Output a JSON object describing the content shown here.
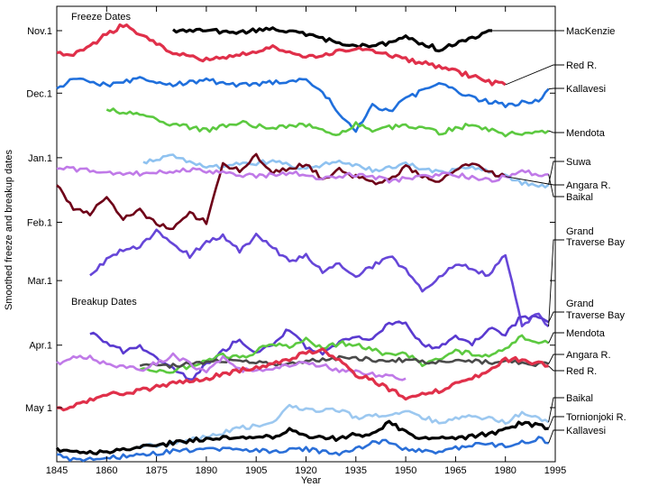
{
  "chart_data": {
    "type": "line",
    "title": "",
    "xlabel": "Year",
    "ylabel": "Smoothed freeze and breakup dates",
    "xlim": [
      1845,
      1995
    ],
    "xticks": [
      "1845",
      "1860",
      "1875",
      "1890",
      "1905",
      "1920",
      "1935",
      "1950",
      "1965",
      "1980",
      "1995"
    ],
    "yticks": [
      {
        "label": "Nov.1",
        "day": 0
      },
      {
        "label": "Dec.1",
        "day": 30
      },
      {
        "label": "Jan.1",
        "day": 61
      },
      {
        "label": "Feb.1",
        "day": 92
      },
      {
        "label": "Mar.1",
        "day": 120
      },
      {
        "label": "Apr.1",
        "day": 151
      },
      {
        "label": "May 1",
        "day": 181
      }
    ],
    "ylim_days_from_nov1": [
      -8,
      207
    ],
    "sections": [
      "Freeze Dates",
      "Breakup Dates"
    ],
    "series": [
      {
        "name": "MacKenzie",
        "group": "freeze",
        "color": "#000000",
        "x": [
          1880,
          1890,
          1900,
          1910,
          1920,
          1930,
          1940,
          1950,
          1960,
          1970,
          1976
        ],
        "y": [
          0,
          0,
          1,
          -1,
          2,
          6,
          8,
          3,
          9,
          4,
          0
        ]
      },
      {
        "name": "Red R.",
        "group": "freeze",
        "color": "#e0304a",
        "x": [
          1845,
          1850,
          1860,
          1865,
          1870,
          1880,
          1890,
          1900,
          1910,
          1920,
          1930,
          1935,
          1940,
          1950,
          1960,
          1970,
          1976,
          1980
        ],
        "y": [
          11,
          12,
          2,
          -3,
          2,
          11,
          14,
          12,
          8,
          13,
          10,
          8,
          10,
          14,
          17,
          22,
          25,
          26
        ]
      },
      {
        "name": "Kallavesi",
        "group": "freeze",
        "color": "#1f6fdc",
        "x": [
          1845,
          1850,
          1860,
          1870,
          1880,
          1890,
          1900,
          1910,
          1920,
          1925,
          1930,
          1935,
          1940,
          1945,
          1950,
          1960,
          1970,
          1980,
          1990,
          1993
        ],
        "y": [
          28,
          23,
          26,
          23,
          26,
          24,
          26,
          25,
          24,
          29,
          40,
          48,
          36,
          39,
          33,
          25,
          32,
          36,
          33,
          28
        ]
      },
      {
        "name": "Mendota",
        "group": "freeze",
        "color": "#5cc940",
        "x": [
          1860,
          1870,
          1880,
          1890,
          1900,
          1910,
          1920,
          1930,
          1935,
          1940,
          1950,
          1960,
          1970,
          1980,
          1990,
          1993
        ],
        "y": [
          38,
          40,
          45,
          48,
          44,
          47,
          45,
          50,
          45,
          48,
          45,
          49,
          45,
          50,
          48,
          48
        ]
      },
      {
        "name": "Suwa",
        "group": "freeze",
        "color": "#8fc2f0",
        "x": [
          1871,
          1880,
          1890,
          1900,
          1910,
          1920,
          1930,
          1940,
          1950,
          1960,
          1970,
          1980,
          1985,
          1990,
          1993
        ],
        "y": [
          63,
          60,
          66,
          64,
          63,
          66,
          63,
          67,
          64,
          68,
          66,
          70,
          73,
          75,
          74
        ]
      },
      {
        "name": "Angara R.",
        "group": "freeze",
        "color": "#6e0018",
        "x": [
          1845,
          1850,
          1855,
          1860,
          1865,
          1870,
          1875,
          1880,
          1885,
          1890,
          1895,
          1900,
          1905,
          1910,
          1920,
          1925,
          1930,
          1935,
          1940,
          1945,
          1950,
          1955,
          1960,
          1965,
          1970,
          1975,
          1980
        ],
        "y": [
          74,
          85,
          88,
          80,
          90,
          86,
          93,
          95,
          88,
          92,
          64,
          67,
          60,
          68,
          64,
          71,
          67,
          70,
          73,
          72,
          65,
          70,
          73,
          67,
          64,
          68,
          70
        ]
      },
      {
        "name": "Baikal",
        "group": "freeze",
        "color": "#c07ae8",
        "x": [
          1845,
          1855,
          1865,
          1875,
          1885,
          1895,
          1905,
          1915,
          1925,
          1935,
          1945,
          1955,
          1965,
          1975,
          1985,
          1993
        ],
        "y": [
          66,
          67,
          69,
          68,
          67,
          68,
          70,
          68,
          71,
          69,
          72,
          70,
          69,
          72,
          68,
          69
        ]
      },
      {
        "name": "Grand Traverse Bay",
        "group": "freeze",
        "color": "#6646d8",
        "x": [
          1855,
          1860,
          1865,
          1870,
          1875,
          1880,
          1885,
          1890,
          1895,
          1900,
          1905,
          1910,
          1915,
          1920,
          1925,
          1930,
          1935,
          1940,
          1945,
          1950,
          1955,
          1960,
          1965,
          1970,
          1975,
          1980,
          1985,
          1990,
          1993
        ],
        "y": [
          117,
          110,
          105,
          104,
          96,
          102,
          108,
          102,
          98,
          106,
          98,
          104,
          111,
          108,
          116,
          112,
          118,
          113,
          108,
          115,
          125,
          118,
          112,
          114,
          118,
          107,
          141,
          136,
          142
        ]
      },
      {
        "name": "Grand Traverse Bay",
        "group": "breakup",
        "color": "#5a3ad0",
        "x": [
          1855,
          1860,
          1865,
          1870,
          1875,
          1880,
          1885,
          1890,
          1895,
          1900,
          1905,
          1910,
          1915,
          1920,
          1925,
          1930,
          1935,
          1940,
          1945,
          1950,
          1955,
          1960,
          1965,
          1970,
          1975,
          1980,
          1985,
          1990,
          1993
        ],
        "y": [
          145,
          150,
          154,
          151,
          158,
          162,
          168,
          160,
          154,
          148,
          155,
          151,
          143,
          152,
          155,
          150,
          147,
          148,
          140,
          141,
          151,
          152,
          147,
          150,
          143,
          146,
          137,
          138,
          140
        ]
      },
      {
        "name": "Mendota",
        "group": "breakup",
        "color": "#5cc940",
        "x": [
          1870,
          1875,
          1880,
          1885,
          1890,
          1895,
          1900,
          1905,
          1910,
          1915,
          1920,
          1925,
          1930,
          1935,
          1940,
          1945,
          1950,
          1955,
          1960,
          1965,
          1970,
          1975,
          1980,
          1985,
          1990,
          1993
        ],
        "y": [
          162,
          164,
          163,
          161,
          158,
          156,
          157,
          154,
          150,
          152,
          148,
          153,
          150,
          151,
          153,
          156,
          155,
          160,
          158,
          154,
          155,
          156,
          152,
          147,
          149,
          150
        ]
      },
      {
        "name": "Angara R.",
        "group": "breakup",
        "color": "#4a4a4a",
        "x": [
          1870,
          1880,
          1890,
          1900,
          1910,
          1920,
          1930,
          1940,
          1950,
          1960,
          1970,
          1980,
          1990,
          1993
        ],
        "y": [
          160,
          161,
          159,
          158,
          160,
          159,
          157,
          158,
          158,
          159,
          159,
          159,
          160,
          160
        ]
      },
      {
        "name": "Baikal",
        "group": "breakup",
        "color": "#c07ae8",
        "x": [
          1845,
          1850,
          1855,
          1860,
          1870,
          1880,
          1890,
          1895,
          1900,
          1910,
          1920,
          1930,
          1940,
          1950
        ],
        "y": [
          160,
          156,
          157,
          160,
          163,
          156,
          164,
          157,
          163,
          162,
          159,
          163,
          165,
          167
        ]
      },
      {
        "name": "Red R.",
        "group": "breakup",
        "color": "#e0304a",
        "x": [
          1845,
          1850,
          1860,
          1870,
          1880,
          1890,
          1900,
          1910,
          1920,
          1925,
          1930,
          1935,
          1940,
          1945,
          1950,
          1960,
          1970,
          1980,
          1985,
          1990,
          1993
        ],
        "y": [
          182,
          180,
          175,
          173,
          169,
          167,
          163,
          160,
          155,
          153,
          158,
          165,
          168,
          172,
          176,
          173,
          167,
          158,
          158,
          160,
          161
        ]
      },
      {
        "name": "Baikal",
        "group": "breakup",
        "color": "#9cc8f0",
        "x": [
          1870,
          1880,
          1890,
          1900,
          1910,
          1915,
          1920,
          1930,
          1935,
          1940,
          1945,
          1950,
          1960,
          1970,
          1980,
          1985,
          1990,
          1993
        ],
        "y": [
          200,
          198,
          195,
          191,
          188,
          180,
          182,
          182,
          186,
          184,
          185,
          183,
          188,
          185,
          188,
          184,
          186,
          188
        ]
      },
      {
        "name": "Tornionjoki R.",
        "group": "breakup",
        "color": "#000000",
        "x": [
          1845,
          1850,
          1860,
          1870,
          1880,
          1890,
          1900,
          1910,
          1915,
          1920,
          1930,
          1935,
          1940,
          1945,
          1950,
          1955,
          1960,
          1970,
          1980,
          1985,
          1990,
          1993
        ],
        "y": [
          201,
          203,
          202,
          200,
          198,
          196,
          195,
          195,
          192,
          195,
          196,
          194,
          194,
          188,
          193,
          196,
          196,
          195,
          192,
          188,
          190,
          191
        ]
      },
      {
        "name": "Kallavesi",
        "group": "breakup",
        "color": "#2a6fd8",
        "x": [
          1845,
          1850,
          1860,
          1870,
          1880,
          1890,
          1900,
          1910,
          1920,
          1930,
          1940,
          1945,
          1950,
          1960,
          1970,
          1980,
          1990,
          1993
        ],
        "y": [
          204,
          206,
          205,
          204,
          202,
          201,
          201,
          202,
          201,
          203,
          198,
          197,
          201,
          202,
          199,
          199,
          196,
          198
        ]
      }
    ],
    "labels": [
      {
        "text": "MacKenzie",
        "series": 0
      },
      {
        "text": "Red R.",
        "series": 1
      },
      {
        "text": "Kallavesi",
        "series": 2
      },
      {
        "text": "Mendota",
        "series": 3
      },
      {
        "text": "Suwa",
        "series": 4
      },
      {
        "text": "Angara R.",
        "series": 5
      },
      {
        "text": "Baikal",
        "series": 6
      },
      {
        "text": "Grand",
        "series": 7
      },
      {
        "text": "Traverse Bay",
        "series": 7
      },
      {
        "text": "Grand",
        "series": 8
      },
      {
        "text": "Traverse Bay",
        "series": 8
      },
      {
        "text": "Mendota",
        "series": 9
      },
      {
        "text": "Angara R.",
        "series": 10
      },
      {
        "text": "Red R.",
        "series": 12
      },
      {
        "text": "Baikal",
        "series": 13
      },
      {
        "text": "Tornionjoki R.",
        "series": 14
      },
      {
        "text": "Kallavesi",
        "series": 15
      }
    ]
  }
}
